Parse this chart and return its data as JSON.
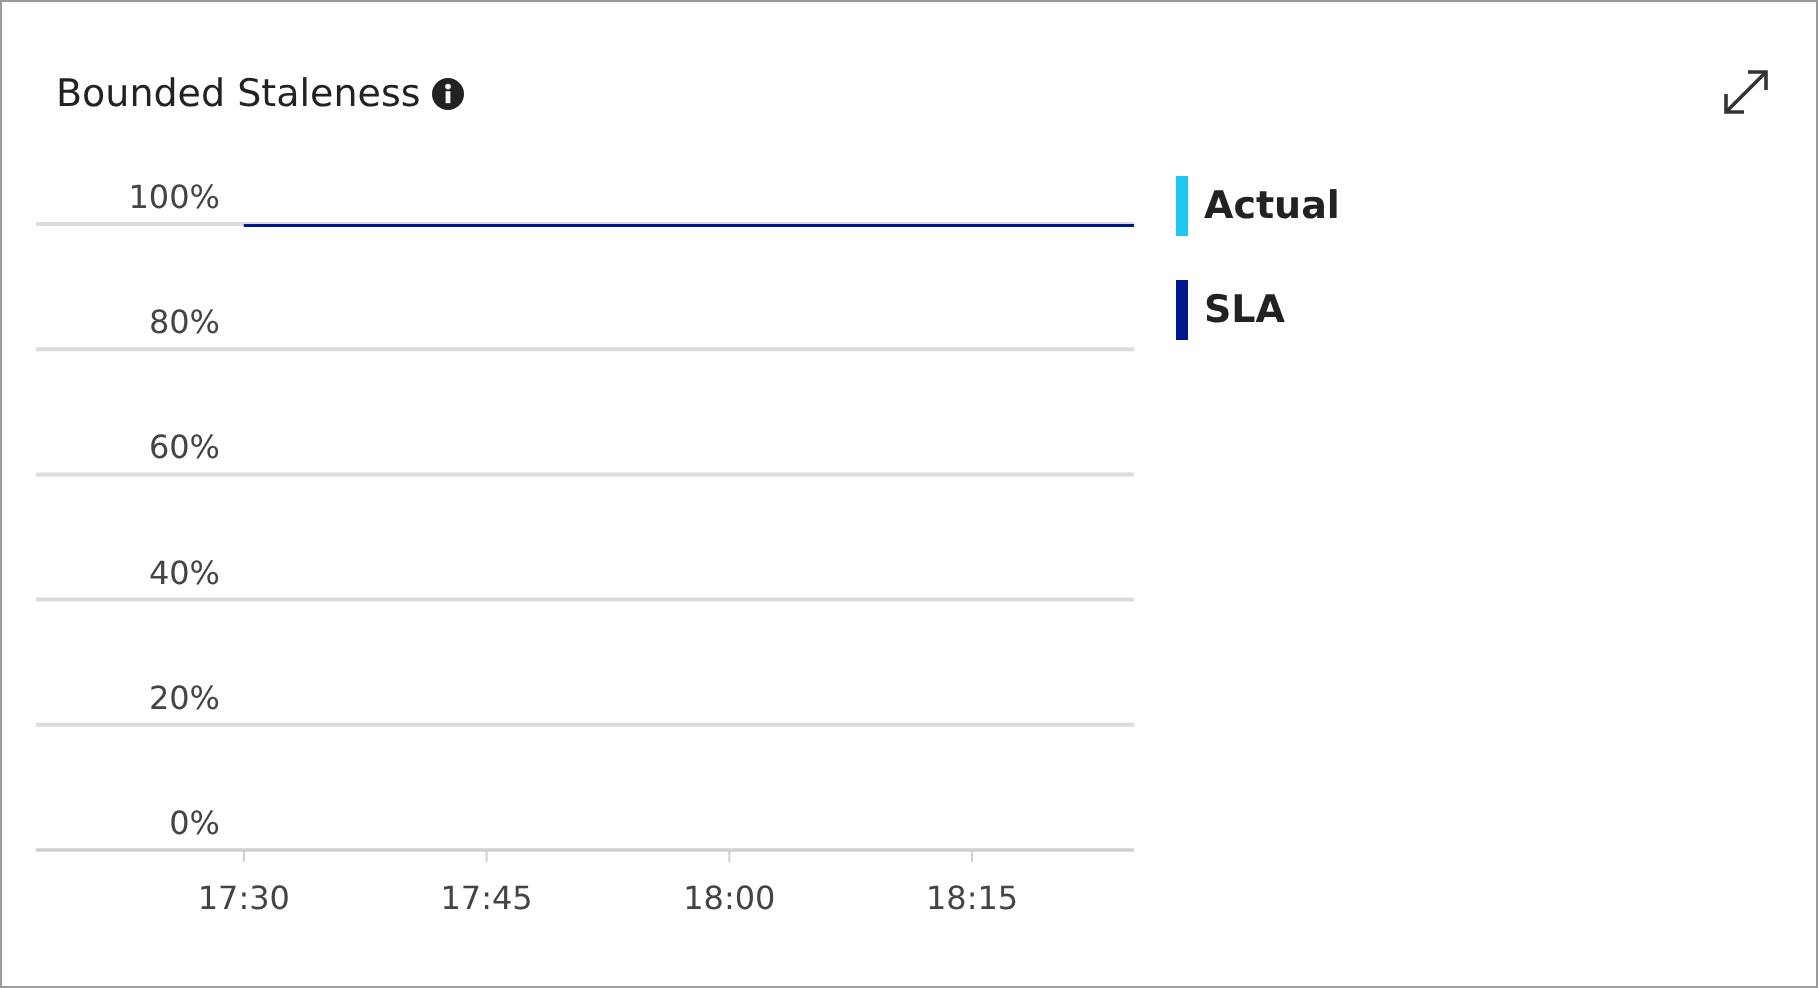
{
  "chart_data": {
    "type": "line",
    "title": "Bounded Staleness",
    "x": [
      17.5,
      18.4167
    ],
    "series": [
      {
        "name": "Actual",
        "color": "#1ec8f0",
        "values": [
          null,
          null
        ]
      },
      {
        "name": "SLA",
        "color": "#00188f",
        "values": [
          100,
          100
        ]
      }
    ],
    "xlim": [
      17.286,
      18.4167
    ],
    "xticks": [
      {
        "value": 17.5,
        "label": "17:30"
      },
      {
        "value": 17.75,
        "label": "17:45"
      },
      {
        "value": 18,
        "label": "18:00"
      },
      {
        "value": 18.25,
        "label": "18:15"
      }
    ],
    "ylim": [
      0,
      100
    ],
    "yticks": [
      {
        "value": 0,
        "label": "0%"
      },
      {
        "value": 20,
        "label": "20%"
      },
      {
        "value": 40,
        "label": "40%"
      },
      {
        "value": 60,
        "label": "60%"
      },
      {
        "value": 80,
        "label": "80%"
      },
      {
        "value": 100,
        "label": "100%"
      }
    ],
    "grid": "y",
    "legend": "right",
    "marker": "none",
    "line_style": "solid"
  }
}
